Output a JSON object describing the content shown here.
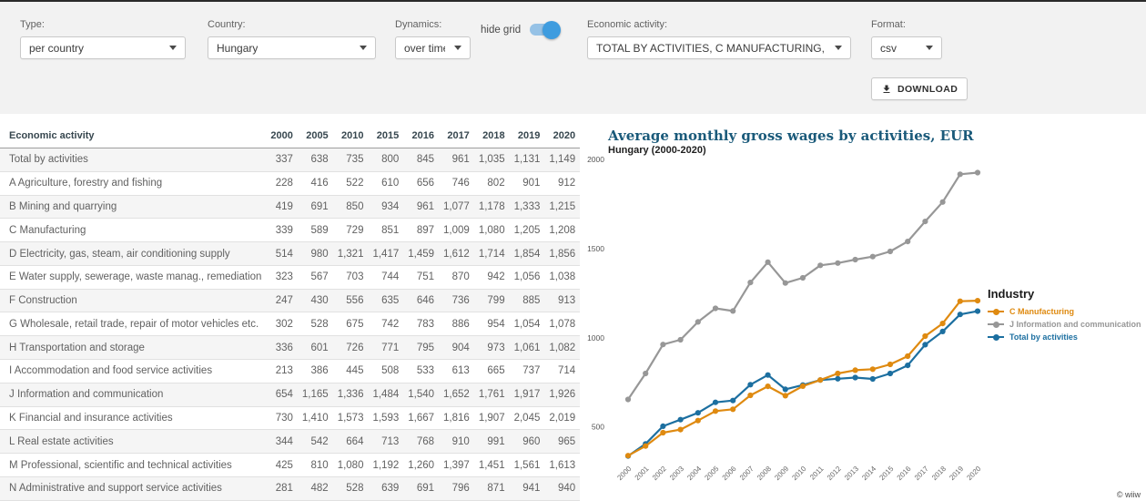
{
  "toolbar": {
    "type": {
      "label": "Type:",
      "value": "per country"
    },
    "country": {
      "label": "Country:",
      "value": "Hungary"
    },
    "dynamics": {
      "label": "Dynamics:",
      "value": "over time"
    },
    "hide_grid": {
      "label": "hide grid",
      "on": true
    },
    "economic_activity": {
      "label": "Economic activity:",
      "value": "TOTAL BY ACTIVITIES, C MANUFACTURING, J INFORMAT"
    },
    "format": {
      "label": "Format:",
      "value": "csv"
    },
    "download_label": "DOWNLOAD"
  },
  "table": {
    "header": [
      "Economic activity",
      "2000",
      "2005",
      "2010",
      "2015",
      "2016",
      "2017",
      "2018",
      "2019",
      "2020"
    ],
    "rows": [
      [
        "Total by activities",
        "337",
        "638",
        "735",
        "800",
        "845",
        "961",
        "1,035",
        "1,131",
        "1,149"
      ],
      [
        "A Agriculture, forestry and fishing",
        "228",
        "416",
        "522",
        "610",
        "656",
        "746",
        "802",
        "901",
        "912"
      ],
      [
        "B Mining and quarrying",
        "419",
        "691",
        "850",
        "934",
        "961",
        "1,077",
        "1,178",
        "1,333",
        "1,215"
      ],
      [
        "C Manufacturing",
        "339",
        "589",
        "729",
        "851",
        "897",
        "1,009",
        "1,080",
        "1,205",
        "1,208"
      ],
      [
        "D Electricity, gas, steam, air conditioning supply",
        "514",
        "980",
        "1,321",
        "1,417",
        "1,459",
        "1,612",
        "1,714",
        "1,854",
        "1,856"
      ],
      [
        "E Water supply, sewerage, waste manag., remediation",
        "323",
        "567",
        "703",
        "744",
        "751",
        "870",
        "942",
        "1,056",
        "1,038"
      ],
      [
        "F Construction",
        "247",
        "430",
        "556",
        "635",
        "646",
        "736",
        "799",
        "885",
        "913"
      ],
      [
        "G Wholesale, retail trade, repair of motor vehicles etc.",
        "302",
        "528",
        "675",
        "742",
        "783",
        "886",
        "954",
        "1,054",
        "1,078"
      ],
      [
        "H Transportation and storage",
        "336",
        "601",
        "726",
        "771",
        "795",
        "904",
        "973",
        "1,061",
        "1,082"
      ],
      [
        "I Accommodation and food service activities",
        "213",
        "386",
        "445",
        "508",
        "533",
        "613",
        "665",
        "737",
        "714"
      ],
      [
        "J Information and communication",
        "654",
        "1,165",
        "1,336",
        "1,484",
        "1,540",
        "1,652",
        "1,761",
        "1,917",
        "1,926"
      ],
      [
        "K Financial and insurance activities",
        "730",
        "1,410",
        "1,573",
        "1,593",
        "1,667",
        "1,816",
        "1,907",
        "2,045",
        "2,019"
      ],
      [
        "L Real estate activities",
        "344",
        "542",
        "664",
        "713",
        "768",
        "910",
        "991",
        "960",
        "965"
      ],
      [
        "M Professional, scientific and technical activities",
        "425",
        "810",
        "1,080",
        "1,192",
        "1,260",
        "1,397",
        "1,451",
        "1,561",
        "1,613"
      ],
      [
        "N Administrative and support service activities",
        "281",
        "482",
        "528",
        "639",
        "691",
        "796",
        "871",
        "941",
        "940"
      ]
    ]
  },
  "chart_data": {
    "type": "line",
    "title": "Average monthly gross wages by activities, EUR",
    "subtitle": "Hungary (2000-2020)",
    "legend_title": "Industry",
    "legend_position": "right",
    "grid": false,
    "credit": "© wiiw",
    "x": [
      2000,
      2001,
      2002,
      2003,
      2004,
      2005,
      2006,
      2007,
      2008,
      2009,
      2010,
      2011,
      2012,
      2013,
      2014,
      2015,
      2016,
      2017,
      2018,
      2019,
      2020
    ],
    "yticks": [
      500,
      1000,
      1500,
      2000
    ],
    "ylim": [
      300,
      2050
    ],
    "series": [
      {
        "name": "C Manufacturing",
        "color": "#df8a10",
        "values": [
          339,
          393,
          468,
          485,
          536,
          589,
          599,
          677,
          728,
          675,
          729,
          763,
          800,
          818,
          824,
          851,
          897,
          1009,
          1080,
          1205,
          1208
        ]
      },
      {
        "name": "J Information and communication",
        "color": "#979797",
        "values": [
          654,
          800,
          962,
          989,
          1089,
          1165,
          1150,
          1310,
          1424,
          1307,
          1336,
          1406,
          1419,
          1438,
          1455,
          1484,
          1540,
          1652,
          1761,
          1917,
          1926
        ]
      },
      {
        "name": "Total by activities",
        "color": "#1c6fa0",
        "values": [
          337,
          405,
          504,
          541,
          579,
          638,
          648,
          737,
          791,
          711,
          735,
          763,
          770,
          777,
          769,
          800,
          845,
          961,
          1035,
          1131,
          1149
        ]
      }
    ]
  }
}
